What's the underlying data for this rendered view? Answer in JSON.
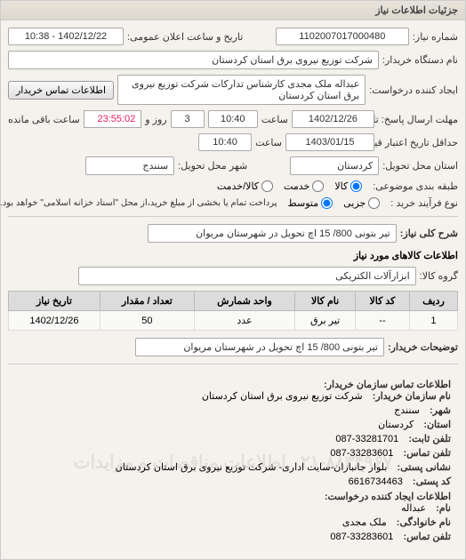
{
  "panel_title": "جزئیات اطلاعات نیاز",
  "fields": {
    "request_no_label": "شماره نیاز:",
    "request_no": "1102007017000480",
    "announce_label": "تاریخ و ساعت اعلان عمومی:",
    "announce_value": "1402/12/22 - 10:38",
    "org_label": "نام دستگاه خریدار:",
    "org_value": "شرکت توزیع نیروی برق استان کردستان",
    "creator_label": "ایجاد کننده درخواست:",
    "creator_value": "عبداله ملک مجدی کارشناس تدارکات شرکت توزیع نیروی برق استان کردستان",
    "contact_btn": "اطلاعات تماس خریدار",
    "deadline_label": "مهلت ارسال پاسخ: تا تاریخ:",
    "deadline_date": "1402/12/26",
    "time_label": "ساعت",
    "deadline_time": "10:40",
    "days_val": "3",
    "days_label": "روز و",
    "remaining": "23:55:02",
    "remaining_label": "ساعت باقی مانده",
    "delivery_label": "حداقل تاریخ اعتبار قیمت: تا تاریخ:",
    "delivery_date": "1403/01/15",
    "delivery_time": "10:40",
    "province_label": "استان محل تحویل:",
    "province": "کردستان",
    "city_label": "شهر محل تحویل:",
    "city": "سنندج",
    "category_label": "طبقه بندی موضوعی:",
    "cat_goods": "کالا",
    "cat_service": "خدمت",
    "cat_both": "کالا/خدمت",
    "process_label": "نوع فرآیند خرید :",
    "proc_partial": "جزیی",
    "proc_medium": "متوسط",
    "proc_note": "پرداخت تمام یا بخشی از مبلغ خرید،از محل \"اسناد خزانه اسلامی\" خواهد بود.",
    "desc_label": "شرح کلی نیاز:",
    "desc_value": "تیر بتونی 800/ 15 اچ تحویل در شهرستان مریوان",
    "items_title": "اطلاعات کالاهای مورد نیاز",
    "group_label": "گروه کالا:",
    "group_value": "ابزارآلات الکتریکی"
  },
  "table": {
    "headers": [
      "ردیف",
      "کد کالا",
      "نام کالا",
      "واحد شمارش",
      "تعداد / مقدار",
      "تاریخ نیاز"
    ],
    "rows": [
      [
        "1",
        "--",
        "تیر برق",
        "عدد",
        "50",
        "1402/12/26"
      ]
    ]
  },
  "notes": {
    "buyer_notes_label": "توضیحات خریدار:",
    "buyer_notes": "تیر بتونی 800/ 15 اچ تحویل در شهرستان مریوان",
    "contact_title": "اطلاعات تماس سازمان خریدار:",
    "org_name_label": "نام سازمان خریدار:",
    "org_name": "شرکت توزیع نیروی برق استان کردستان",
    "city_l": "شهر:",
    "city_v": "سنندج",
    "province_l": "استان:",
    "province_v": "کردستان",
    "phone_l": "تلفن ثابت:",
    "phone_v": "087-33281701",
    "fax_l": "تلفن تماس:",
    "fax_v": "087-33283601",
    "address_l": "نشانی پستی:",
    "address_v": "بلوار جانبازان-سایت اداری- شرکت توزیع نیروی برق استان کردستان",
    "post_l": "کد پستی:",
    "post_v": "6616734463",
    "creator_title": "اطلاعات ایجاد کننده درخواست:",
    "name_l": "نام:",
    "name_v": "عبداله",
    "family_l": "نام خانوادگی:",
    "family_v": "ملک مجدی",
    "cphone_l": "تلفن تماس:",
    "cphone_v": "087-33283601",
    "watermark": "۰۲۱-۸۸۳۴۹۶۷  اطلاعات مناقصات و مزایدات"
  }
}
